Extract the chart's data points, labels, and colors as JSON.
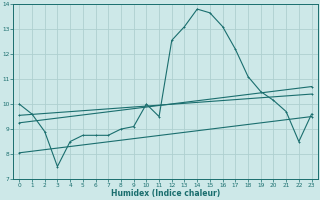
{
  "bg_color": "#cde8e8",
  "grid_color": "#aed0d0",
  "line_color": "#1a6e6e",
  "xlabel": "Humidex (Indice chaleur)",
  "xlim": [
    -0.5,
    23.5
  ],
  "ylim": [
    7,
    14
  ],
  "yticks": [
    7,
    8,
    9,
    10,
    11,
    12,
    13,
    14
  ],
  "xticks": [
    0,
    1,
    2,
    3,
    4,
    5,
    6,
    7,
    8,
    9,
    10,
    11,
    12,
    13,
    14,
    15,
    16,
    17,
    18,
    19,
    20,
    21,
    22,
    23
  ],
  "line1_x": [
    0,
    1,
    2,
    3,
    4,
    5,
    6,
    7,
    8,
    9,
    10,
    11,
    12,
    13,
    14,
    15,
    16,
    17,
    18,
    19,
    20,
    21,
    22,
    23
  ],
  "line1_y": [
    10.0,
    9.6,
    8.9,
    7.5,
    8.5,
    8.75,
    8.75,
    8.75,
    9.0,
    9.1,
    10.0,
    9.5,
    12.55,
    13.1,
    13.8,
    13.65,
    13.1,
    12.2,
    11.1,
    10.5,
    10.15,
    9.7,
    8.5,
    9.6
  ],
  "line2_x": [
    0,
    23
  ],
  "line2_y": [
    9.55,
    10.4
  ],
  "line3_x": [
    0,
    23
  ],
  "line3_y": [
    9.25,
    10.7
  ],
  "line4_x": [
    0,
    23
  ],
  "line4_y": [
    8.05,
    9.5
  ]
}
